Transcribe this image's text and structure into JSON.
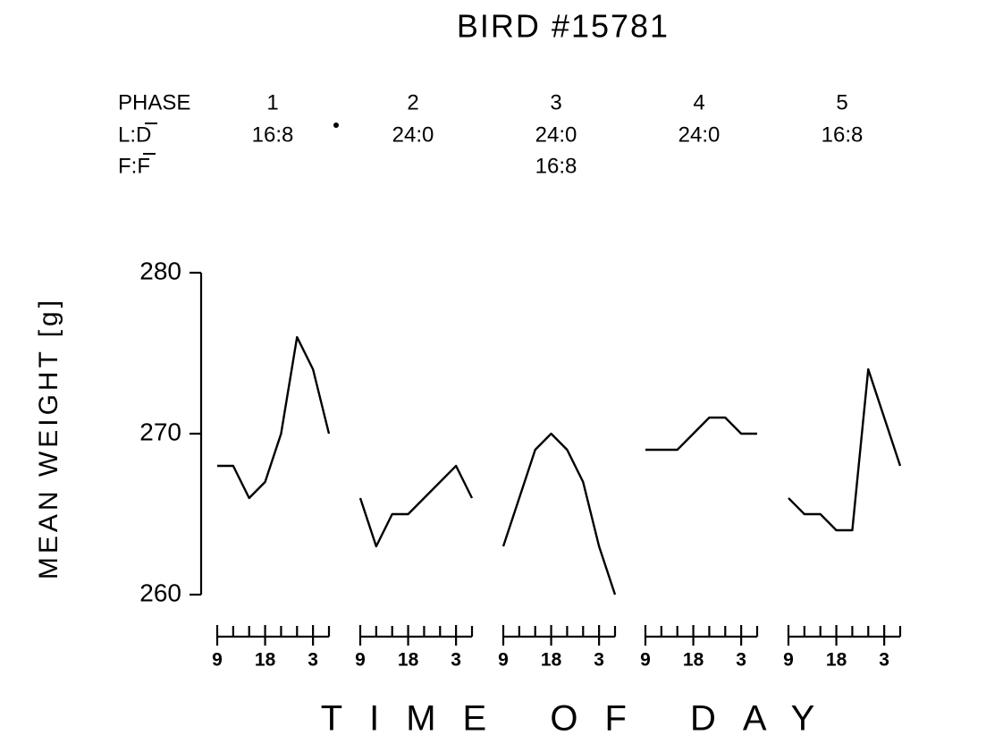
{
  "title": "BIRD #15781",
  "phases": {
    "row_labels": [
      "PHASE",
      "L:D",
      "F:F"
    ],
    "columns": [
      {
        "phase": "1",
        "ld": "16:8"
      },
      {
        "phase": "2",
        "ld": "24:0"
      },
      {
        "phase": "3",
        "ld": "24:0",
        "ff": "16:8"
      },
      {
        "phase": "4",
        "ld": "24:0"
      },
      {
        "phase": "5",
        "ld": "16:8"
      }
    ]
  },
  "x_axis_label": "TIME OF DAY",
  "chart_data": [
    {
      "type": "line",
      "ylabel": "MEAN WEIGHT [g]",
      "ylim": [
        260,
        280
      ],
      "yticks": [
        260,
        270,
        280
      ],
      "x": [
        9,
        12,
        15,
        18,
        21,
        24,
        27,
        30
      ],
      "values": [
        268,
        268,
        266,
        267,
        270,
        276,
        274,
        270
      ],
      "xlim": [
        9,
        30
      ],
      "xticks": [
        9,
        18,
        {
          "value": 27,
          "label": "3"
        }
      ],
      "minor_xticks": [
        12,
        15,
        21,
        24,
        30
      ]
    },
    {
      "type": "line",
      "ylim": [
        260,
        280
      ],
      "x": [
        9,
        12,
        15,
        18,
        21,
        24,
        27,
        30
      ],
      "values": [
        266,
        263,
        265,
        265,
        266,
        267,
        268,
        266
      ],
      "xlim": [
        9,
        30
      ],
      "xticks": [
        9,
        18,
        {
          "value": 27,
          "label": "3"
        }
      ],
      "minor_xticks": [
        12,
        15,
        21,
        24,
        30
      ]
    },
    {
      "type": "line",
      "ylim": [
        260,
        280
      ],
      "x": [
        9,
        12,
        15,
        18,
        21,
        24,
        27,
        30
      ],
      "values": [
        263,
        266,
        269,
        270,
        269,
        267,
        263,
        260
      ],
      "xlim": [
        9,
        30
      ],
      "xticks": [
        9,
        18,
        {
          "value": 27,
          "label": "3"
        }
      ],
      "minor_xticks": [
        12,
        15,
        21,
        24,
        30
      ]
    },
    {
      "type": "line",
      "ylim": [
        260,
        280
      ],
      "x": [
        9,
        12,
        15,
        18,
        21,
        24,
        27,
        30
      ],
      "values": [
        269,
        269,
        269,
        270,
        271,
        271,
        270,
        270
      ],
      "xlim": [
        9,
        30
      ],
      "xticks": [
        9,
        18,
        {
          "value": 27,
          "label": "3"
        }
      ],
      "minor_xticks": [
        12,
        15,
        21,
        24,
        30
      ]
    },
    {
      "type": "line",
      "ylim": [
        260,
        280
      ],
      "x": [
        9,
        12,
        15,
        18,
        21,
        24,
        27,
        30
      ],
      "values": [
        266,
        265,
        265,
        264,
        264,
        274,
        271,
        268
      ],
      "xlim": [
        9,
        30
      ],
      "xticks": [
        9,
        18,
        {
          "value": 27,
          "label": "3"
        }
      ],
      "minor_xticks": [
        12,
        15,
        21,
        24,
        30
      ]
    }
  ]
}
